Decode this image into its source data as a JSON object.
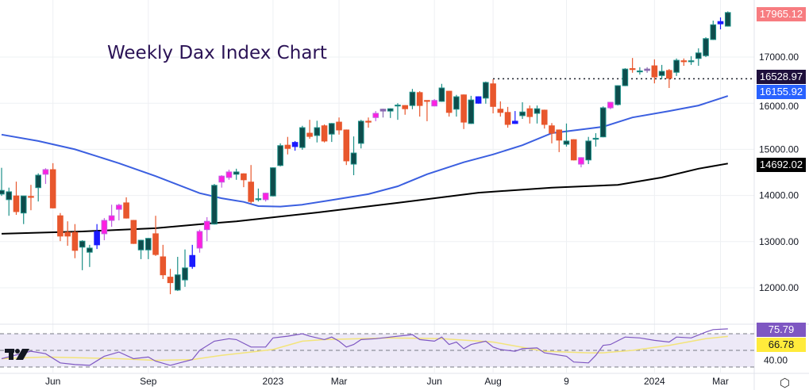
{
  "title": "Weekly Dax Index Chart",
  "colors": {
    "up": "#0e4c4c",
    "up_border": "#1d9088",
    "down": "#e8572d",
    "magenta": "#ff1fe0",
    "blue": "#1a1aff",
    "purple": "#8a6ab0",
    "sma_fast": "#3b5fe0",
    "sma_slow": "#000000",
    "rsi": "#7e57c2",
    "rsi_ma": "#f3e47a"
  },
  "badges": {
    "last_price": {
      "text": "17965.12",
      "bg": "#f77c80",
      "fg": "#ffffff"
    },
    "resistance": {
      "text": "16528.97",
      "bg": "#1e0f3c",
      "fg": "#ffffff"
    },
    "sma_fast": {
      "text": "16155.92",
      "bg": "#2962ff",
      "fg": "#ffffff"
    },
    "sma_slow": {
      "text": "14692.02",
      "bg": "#000000",
      "fg": "#ffffff"
    },
    "rsi": {
      "text": "75.79",
      "bg": "#7e57c2",
      "fg": "#ffffff"
    },
    "rsi_ma": {
      "text": "66.78",
      "bg": "#ffeb3b",
      "fg": "#131722"
    }
  },
  "price_axis": [
    "17000.00",
    "16000.00",
    "15000.00",
    "14000.00",
    "13000.00",
    "12000.00"
  ],
  "rsi_axis": [
    "40.00"
  ],
  "time_axis": [
    {
      "label": "Jun",
      "idx": 7
    },
    {
      "label": "Sep",
      "idx": 20
    },
    {
      "label": "2023",
      "idx": 37
    },
    {
      "label": "Mar",
      "idx": 46
    },
    {
      "label": "Jun",
      "idx": 59
    },
    {
      "label": "Aug",
      "idx": 67
    },
    {
      "label": "9",
      "idx": 77
    },
    {
      "label": "2024",
      "idx": 89
    },
    {
      "label": "Mar",
      "idx": 98
    }
  ],
  "chart_data": {
    "type": "candlestick",
    "title": "Weekly Dax Index Chart",
    "ylim": [
      11700,
      18300
    ],
    "grid": true,
    "candle_fields": [
      "open",
      "high",
      "low",
      "close",
      "color"
    ],
    "candles": [
      [
        14030,
        14600,
        13990,
        14110,
        "u"
      ],
      [
        13910,
        14170,
        13560,
        14080,
        "u"
      ],
      [
        13990,
        14300,
        13580,
        13650,
        "d"
      ],
      [
        13620,
        13990,
        13380,
        13990,
        "u"
      ],
      [
        13980,
        14230,
        13680,
        13970,
        "d"
      ],
      [
        14170,
        14480,
        13870,
        14440,
        "u"
      ],
      [
        14460,
        14590,
        14250,
        14560,
        "m"
      ],
      [
        14560,
        14700,
        13720,
        13730,
        "d"
      ],
      [
        13560,
        13620,
        13010,
        13120,
        "d"
      ],
      [
        13200,
        13440,
        12910,
        13120,
        "d"
      ],
      [
        13200,
        13380,
        12640,
        12810,
        "d"
      ],
      [
        12880,
        13030,
        12380,
        13010,
        "u"
      ],
      [
        12770,
        12930,
        12450,
        12860,
        "u"
      ],
      [
        12930,
        13380,
        12840,
        13220,
        "b"
      ],
      [
        13170,
        13510,
        13030,
        13460,
        "m"
      ],
      [
        13460,
        13800,
        13320,
        13560,
        "m"
      ],
      [
        13700,
        13820,
        13460,
        13790,
        "m"
      ],
      [
        13840,
        13960,
        13500,
        13510,
        "d"
      ],
      [
        13460,
        13470,
        12950,
        12960,
        "d"
      ],
      [
        12820,
        13040,
        12620,
        13030,
        "u"
      ],
      [
        12820,
        13080,
        12620,
        13070,
        "u"
      ],
      [
        13170,
        13560,
        12690,
        12720,
        "d"
      ],
      [
        12670,
        12930,
        12190,
        12280,
        "d"
      ],
      [
        12230,
        12410,
        11860,
        12110,
        "d"
      ],
      [
        11950,
        12670,
        11930,
        12280,
        "u"
      ],
      [
        12170,
        12830,
        12020,
        12430,
        "u"
      ],
      [
        12460,
        12930,
        12410,
        12700,
        "b"
      ],
      [
        12860,
        13260,
        12760,
        13220,
        "m"
      ],
      [
        13260,
        13530,
        13010,
        13440,
        "m"
      ],
      [
        13380,
        14250,
        13370,
        14220,
        "u"
      ],
      [
        14290,
        14440,
        14170,
        14420,
        "m"
      ],
      [
        14390,
        14560,
        14340,
        14510,
        "m"
      ],
      [
        14460,
        14580,
        14340,
        14510,
        "u"
      ],
      [
        14470,
        14480,
        14180,
        14340,
        "d"
      ],
      [
        14290,
        14660,
        13820,
        13870,
        "d"
      ],
      [
        13930,
        14150,
        13870,
        13920,
        "u"
      ],
      [
        13910,
        14060,
        13870,
        14050,
        "m"
      ],
      [
        13990,
        14610,
        13980,
        14600,
        "u"
      ],
      [
        14650,
        15130,
        14630,
        15080,
        "u"
      ],
      [
        15090,
        15270,
        14890,
        15020,
        "d"
      ],
      [
        15060,
        15180,
        14970,
        15150,
        "b"
      ],
      [
        15040,
        15510,
        14990,
        15470,
        "u"
      ],
      [
        15350,
        15640,
        15230,
        15280,
        "d"
      ],
      [
        15300,
        15620,
        15150,
        15470,
        "u"
      ],
      [
        15510,
        15540,
        15150,
        15180,
        "d"
      ],
      [
        15330,
        15570,
        15160,
        15560,
        "u"
      ],
      [
        15590,
        15690,
        15320,
        15420,
        "d"
      ],
      [
        15420,
        15430,
        14660,
        14750,
        "d"
      ],
      [
        14680,
        15280,
        14440,
        14920,
        "u"
      ],
      [
        15130,
        15640,
        15020,
        15610,
        "u"
      ],
      [
        15610,
        15690,
        15470,
        15590,
        "d"
      ],
      [
        15690,
        15830,
        15610,
        15780,
        "m"
      ],
      [
        15830,
        15880,
        15690,
        15870,
        "p"
      ],
      [
        15830,
        15890,
        15680,
        15880,
        "u"
      ],
      [
        15950,
        16000,
        15640,
        15960,
        "u"
      ],
      [
        15950,
        15960,
        15750,
        15880,
        "d"
      ],
      [
        15950,
        16310,
        15870,
        16240,
        "u"
      ],
      [
        16230,
        16260,
        15710,
        15950,
        "d"
      ],
      [
        16060,
        16060,
        15610,
        16050,
        "d"
      ],
      [
        15940,
        16090,
        15930,
        16060,
        "m"
      ],
      [
        16040,
        16420,
        16030,
        16330,
        "u"
      ],
      [
        16260,
        16270,
        15710,
        15800,
        "d"
      ],
      [
        15870,
        16180,
        15710,
        16140,
        "u"
      ],
      [
        16180,
        16190,
        15440,
        15590,
        "d"
      ],
      [
        15560,
        16160,
        15550,
        16070,
        "u"
      ],
      [
        16000,
        16150,
        15990,
        16140,
        "b"
      ],
      [
        16110,
        16470,
        15990,
        16450,
        "u"
      ],
      [
        16420,
        16520,
        15780,
        15930,
        "d"
      ],
      [
        15870,
        16040,
        15710,
        15800,
        "d"
      ],
      [
        15800,
        15920,
        15470,
        15540,
        "d"
      ],
      [
        15560,
        15830,
        15550,
        15610,
        "b"
      ],
      [
        15730,
        16020,
        15660,
        15810,
        "u"
      ],
      [
        15880,
        15950,
        15560,
        15710,
        "d"
      ],
      [
        15780,
        15950,
        15560,
        15880,
        "u"
      ],
      [
        15850,
        15860,
        15450,
        15540,
        "d"
      ],
      [
        15510,
        15570,
        15130,
        15350,
        "d"
      ],
      [
        15420,
        15430,
        14940,
        15200,
        "d"
      ],
      [
        15110,
        15560,
        15060,
        15180,
        "u"
      ],
      [
        15210,
        15220,
        14760,
        14770,
        "d"
      ],
      [
        14680,
        14830,
        14610,
        14820,
        "m"
      ],
      [
        14770,
        15270,
        14680,
        15180,
        "u"
      ],
      [
        15230,
        15350,
        15060,
        15240,
        "u"
      ],
      [
        15270,
        15930,
        15260,
        15900,
        "u"
      ],
      [
        15900,
        16030,
        15870,
        16020,
        "m"
      ],
      [
        15970,
        16390,
        15950,
        16380,
        "u"
      ],
      [
        16380,
        16760,
        16370,
        16740,
        "u"
      ],
      [
        16750,
        16980,
        16660,
        16740,
        "d"
      ],
      [
        16690,
        16780,
        16620,
        16700,
        "u"
      ],
      [
        16710,
        16780,
        16660,
        16740,
        "p"
      ],
      [
        16810,
        16950,
        16430,
        16570,
        "d"
      ],
      [
        16600,
        16830,
        16520,
        16690,
        "u"
      ],
      [
        16710,
        16740,
        16330,
        16540,
        "d"
      ],
      [
        16670,
        16970,
        16590,
        16930,
        "u"
      ],
      [
        16910,
        16970,
        16810,
        16920,
        "d"
      ],
      [
        16910,
        17020,
        16830,
        16920,
        "u"
      ],
      [
        16970,
        17190,
        16810,
        17090,
        "u"
      ],
      [
        17030,
        17430,
        17000,
        17400,
        "u"
      ],
      [
        17380,
        17790,
        17370,
        17700,
        "u"
      ],
      [
        17720,
        17860,
        17600,
        17770,
        "b"
      ],
      [
        17670,
        17990,
        17660,
        17965.12,
        "u"
      ]
    ],
    "sma_fast": [
      [
        0,
        15320
      ],
      [
        5,
        15180
      ],
      [
        10,
        15000
      ],
      [
        16,
        14700
      ],
      [
        21,
        14420
      ],
      [
        27,
        14050
      ],
      [
        30,
        13940
      ],
      [
        33,
        13860
      ],
      [
        35,
        13770
      ],
      [
        38,
        13760
      ],
      [
        41,
        13800
      ],
      [
        45,
        13900
      ],
      [
        50,
        14030
      ],
      [
        54,
        14200
      ],
      [
        58,
        14460
      ],
      [
        63,
        14720
      ],
      [
        67,
        14890
      ],
      [
        71,
        15090
      ],
      [
        75,
        15350
      ],
      [
        80,
        15450
      ],
      [
        82,
        15490
      ],
      [
        86,
        15690
      ],
      [
        91,
        15830
      ],
      [
        95,
        15950
      ],
      [
        99,
        16155.92
      ]
    ],
    "sma_slow": [
      [
        0,
        13170
      ],
      [
        11,
        13220
      ],
      [
        21,
        13290
      ],
      [
        28,
        13390
      ],
      [
        32,
        13440
      ],
      [
        43,
        13630
      ],
      [
        54,
        13840
      ],
      [
        65,
        14060
      ],
      [
        75,
        14170
      ],
      [
        84,
        14230
      ],
      [
        90,
        14390
      ],
      [
        95,
        14580
      ],
      [
        99,
        14692.02
      ]
    ],
    "resistance_level": 16528.97,
    "resistance_from_idx": 67,
    "rsi": {
      "ylim": [
        20,
        80
      ],
      "bands": [
        70,
        50,
        30
      ],
      "values": [
        [
          0,
          40
        ],
        [
          4,
          49
        ],
        [
          6,
          46
        ],
        [
          8,
          35
        ],
        [
          10,
          33
        ],
        [
          12,
          32
        ],
        [
          14,
          43
        ],
        [
          16,
          48
        ],
        [
          18,
          40
        ],
        [
          20,
          42
        ],
        [
          21,
          37
        ],
        [
          23,
          32
        ],
        [
          26,
          39
        ],
        [
          27,
          50
        ],
        [
          29,
          61
        ],
        [
          31,
          64
        ],
        [
          32,
          63
        ],
        [
          34,
          54
        ],
        [
          36,
          54
        ],
        [
          37,
          65
        ],
        [
          39,
          67
        ],
        [
          41,
          70
        ],
        [
          42,
          67
        ],
        [
          44,
          63
        ],
        [
          45,
          66
        ],
        [
          46,
          61
        ],
        [
          47,
          54
        ],
        [
          48,
          57
        ],
        [
          49,
          63
        ],
        [
          51,
          64
        ],
        [
          53,
          66
        ],
        [
          56,
          69
        ],
        [
          57,
          63
        ],
        [
          59,
          61
        ],
        [
          60,
          66
        ],
        [
          61,
          57
        ],
        [
          62,
          60
        ],
        [
          63,
          52
        ],
        [
          64,
          57
        ],
        [
          66,
          61
        ],
        [
          67,
          54
        ],
        [
          68,
          51
        ],
        [
          70,
          49
        ],
        [
          71,
          52
        ],
        [
          73,
          53
        ],
        [
          74,
          47
        ],
        [
          77,
          43
        ],
        [
          78,
          36
        ],
        [
          80,
          35
        ],
        [
          81,
          44
        ],
        [
          82,
          56
        ],
        [
          83,
          57
        ],
        [
          85,
          66
        ],
        [
          87,
          65
        ],
        [
          89,
          62
        ],
        [
          91,
          60
        ],
        [
          92,
          66
        ],
        [
          94,
          65
        ],
        [
          96,
          72
        ],
        [
          97,
          75
        ],
        [
          99,
          75.79
        ]
      ],
      "ma": [
        [
          0,
          40
        ],
        [
          6,
          42
        ],
        [
          16,
          40
        ],
        [
          21,
          38
        ],
        [
          26,
          39
        ],
        [
          30,
          44
        ],
        [
          34,
          48
        ],
        [
          37,
          51
        ],
        [
          41,
          61
        ],
        [
          44,
          63
        ],
        [
          49,
          64
        ],
        [
          53,
          65
        ],
        [
          60,
          64
        ],
        [
          67,
          60
        ],
        [
          74,
          49
        ],
        [
          80,
          47
        ],
        [
          82,
          47
        ],
        [
          86,
          50
        ],
        [
          91,
          56
        ],
        [
          96,
          64
        ],
        [
          99,
          66.78
        ]
      ]
    }
  }
}
